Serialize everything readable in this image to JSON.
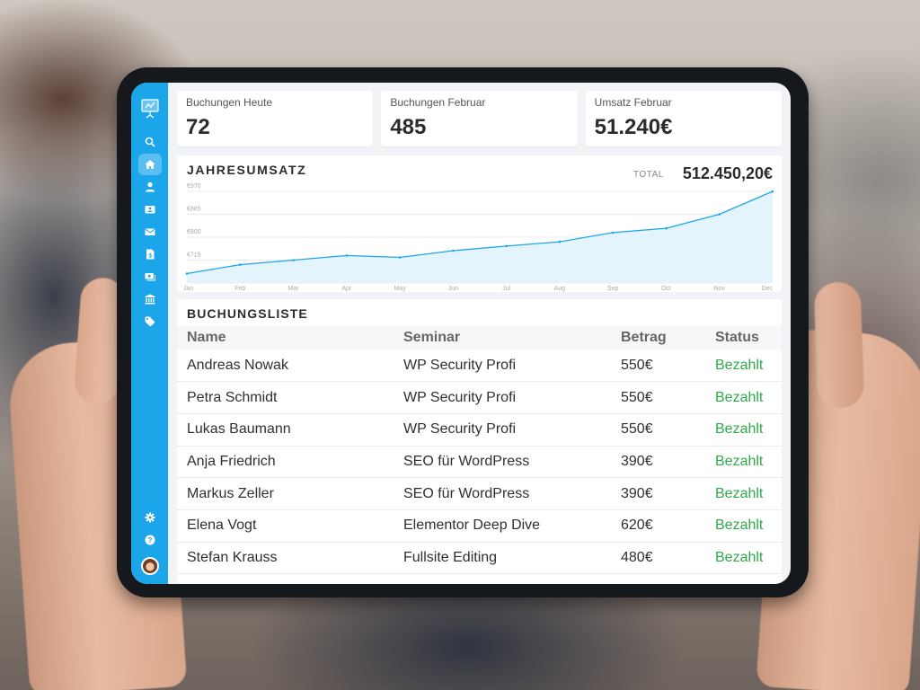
{
  "sidebar": {
    "logo": "presentation-chart-icon",
    "items": [
      {
        "icon": "search-icon",
        "active": false
      },
      {
        "icon": "home-icon",
        "active": true
      },
      {
        "icon": "user-icon",
        "active": false
      },
      {
        "icon": "id-card-icon",
        "active": false
      },
      {
        "icon": "mail-icon",
        "active": false
      },
      {
        "icon": "invoice-icon",
        "active": false
      },
      {
        "icon": "money-icon",
        "active": false
      },
      {
        "icon": "bank-icon",
        "active": false
      },
      {
        "icon": "tag-icon",
        "active": false
      }
    ],
    "bottom": [
      {
        "icon": "gear-icon"
      },
      {
        "icon": "help-icon"
      },
      {
        "icon": "avatar"
      }
    ]
  },
  "stats": [
    {
      "label": "Buchungen Heute",
      "value": "72"
    },
    {
      "label": "Buchungen Februar",
      "value": "485"
    },
    {
      "label": "Umsatz Februar",
      "value": "51.240€"
    }
  ],
  "revenue": {
    "title": "JAHRESUMSATZ",
    "total_label": "TOTAL",
    "total_value": "512.450,20€"
  },
  "chart_data": {
    "type": "area",
    "title": "JAHRESUMSATZ",
    "xlabel": "",
    "ylabel": "",
    "categories": [
      "Jan",
      "Feb",
      "Mar",
      "Apr",
      "May",
      "Jun",
      "Jul",
      "Aug",
      "Sep",
      "Oct",
      "Nov",
      "Dec"
    ],
    "values": [
      665,
      698,
      715,
      732,
      725,
      750,
      767,
      783,
      817,
      833,
      885,
      970
    ],
    "y_ticks": [
      "€970",
      "€885",
      "€800",
      "€715",
      "€630"
    ],
    "ylim": [
      630,
      970
    ],
    "grid": true,
    "legend": "none",
    "colors": {
      "line": "#1ca6ea",
      "fill": "#e3f4fc",
      "grid": "#ececec"
    }
  },
  "bookings": {
    "title": "BUCHUNGSLISTE",
    "columns": [
      "Name",
      "Seminar",
      "Betrag",
      "Status"
    ],
    "rows": [
      {
        "name": "Andreas Nowak",
        "seminar": "WP Security Profi",
        "amount": "550€",
        "status": "Bezahlt"
      },
      {
        "name": "Petra Schmidt",
        "seminar": "WP Security Profi",
        "amount": "550€",
        "status": "Bezahlt"
      },
      {
        "name": "Lukas Baumann",
        "seminar": "WP Security Profi",
        "amount": "550€",
        "status": "Bezahlt"
      },
      {
        "name": "Anja Friedrich",
        "seminar": "SEO für WordPress",
        "amount": "390€",
        "status": "Bezahlt"
      },
      {
        "name": "Markus Zeller",
        "seminar": "SEO für WordPress",
        "amount": "390€",
        "status": "Bezahlt"
      },
      {
        "name": "Elena Vogt",
        "seminar": "Elementor Deep Dive",
        "amount": "620€",
        "status": "Bezahlt"
      },
      {
        "name": "Stefan Krauss",
        "seminar": "Fullsite Editing",
        "amount": "480€",
        "status": "Bezahlt"
      }
    ]
  },
  "colors": {
    "accent": "#1ca6ea",
    "status_paid": "#2eaa4a",
    "background": "#f2f3f6"
  }
}
